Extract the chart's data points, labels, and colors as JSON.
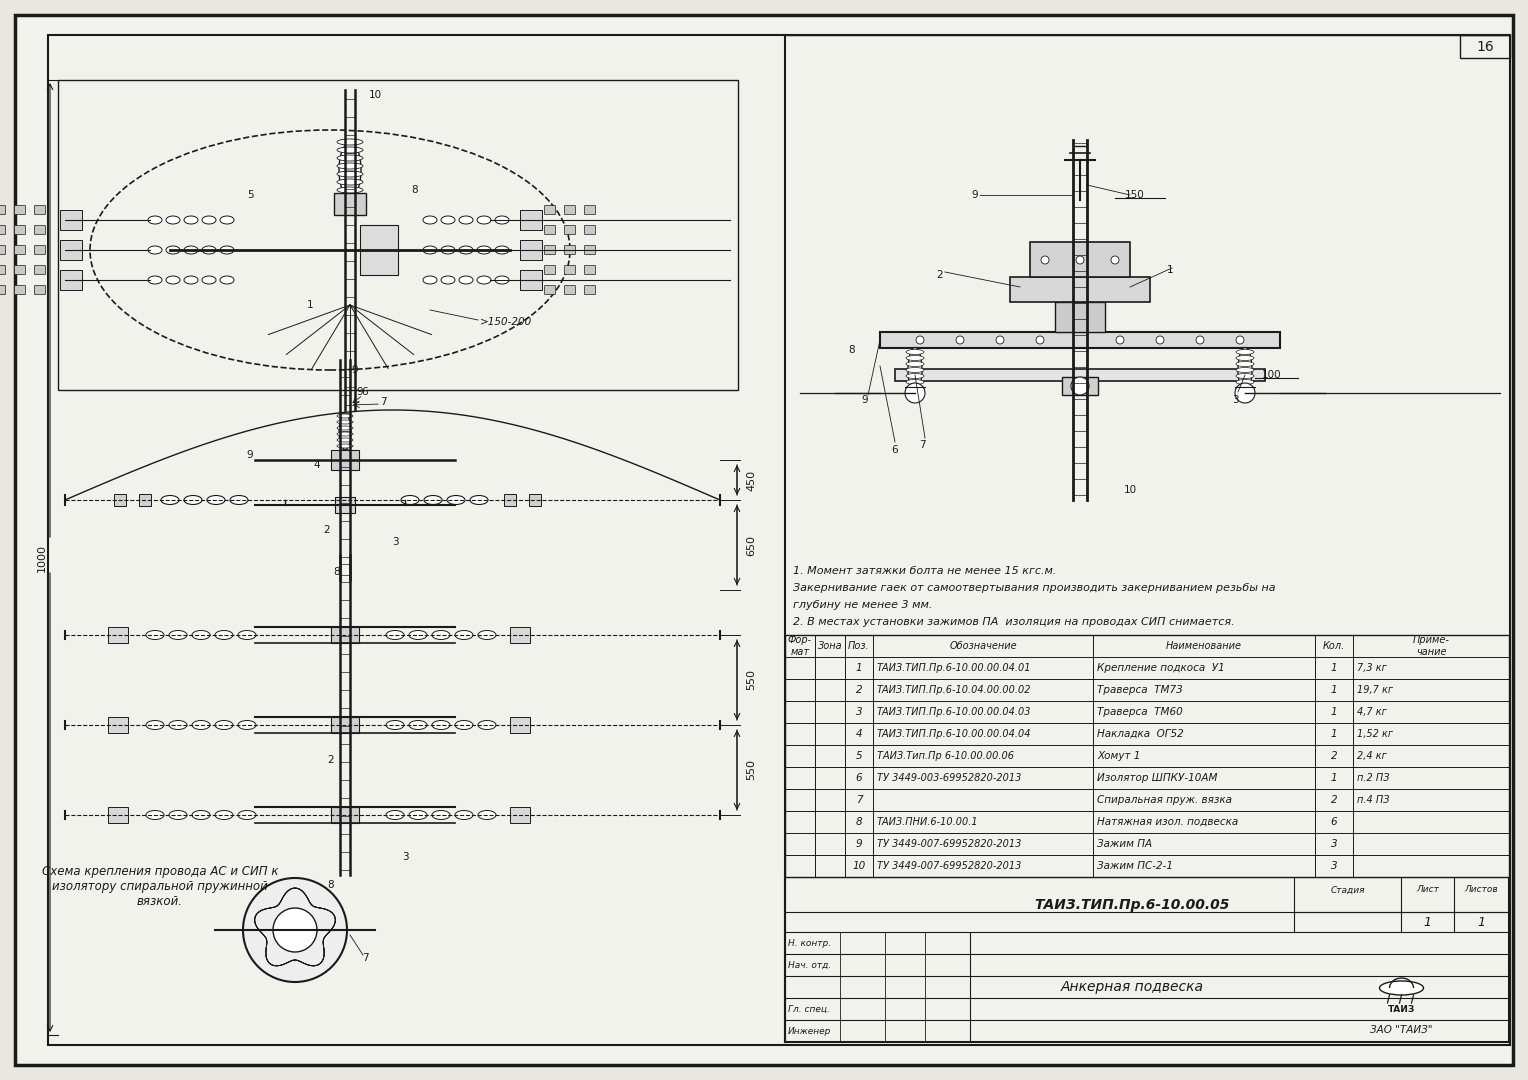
{
  "bg_color": "#e8e8e0",
  "paper_color": "#f2f2ec",
  "line_color": "#1a1a1a",
  "title_code": "ТАИЗ.ТИП.Пр.6-10.00.05",
  "subtitle": "Анкерная подвеска",
  "company": "ЗАО \"ТАИЗ\"",
  "sheet_num": "16",
  "notes": [
    "1. Момент затяжки болта не менее 15 кгс.м.",
    "Закерниваниe гаек от самоотвертывания производить закерниванием резьбы на",
    "глубину не менее 3 мм.",
    "2. В местах установки зажимов ПА  изоляция на проводах СИП снимается."
  ],
  "table_rows": [
    [
      "1",
      "ТАИЗ.ТИП.Пр.6-10.00.00.04.01",
      "Крепление подкоса  У1",
      "1",
      "7,3 кг"
    ],
    [
      "2",
      "ТАИЗ.ТИП.Пр.6-10.04.00.00.02",
      "Траверса  ТМ73",
      "1",
      "19,7 кг"
    ],
    [
      "3",
      "ТАИЗ.ТИП.Пр.6-10.00.00.04.03",
      "Траверса  ТМ60",
      "1",
      "4,7 кг"
    ],
    [
      "4",
      "ТАИЗ.ТИП.Пр.6-10.00.00.04.04",
      "Накладка  ОГ52",
      "1",
      "1,52 кг"
    ],
    [
      "5",
      "ТАИЗ.Тип.Пр 6-10.00.00.06",
      "Хомут 1",
      "2",
      "2,4 кг"
    ],
    [
      "6",
      "ТУ 3449-003-69952820-2013",
      "Изолятор ШПКУ-10АМ",
      "1",
      "п.2 ПЗ"
    ],
    [
      "7",
      "",
      "Спиральная пруж. вязка",
      "2",
      "п.4 ПЗ"
    ],
    [
      "8",
      "ТАИЗ.ПНИ.6-10.00.1",
      "Натяжная изол. подвеска",
      "6",
      ""
    ],
    [
      "9",
      "ТУ 3449-007-69952820-2013",
      "Зажим ПА",
      "3",
      ""
    ],
    [
      "10",
      "ТУ 3449-007-69952820-2013",
      "Зажим ПС-2-1",
      "3",
      ""
    ]
  ],
  "sig_labels": [
    "Н. контр.",
    "Нач. отд.",
    "",
    "Гл. спец.",
    "Инженер"
  ],
  "caption": "Схема крепления провода АС и СИП к\nизолятору спиральной пружинной\nвязкой."
}
